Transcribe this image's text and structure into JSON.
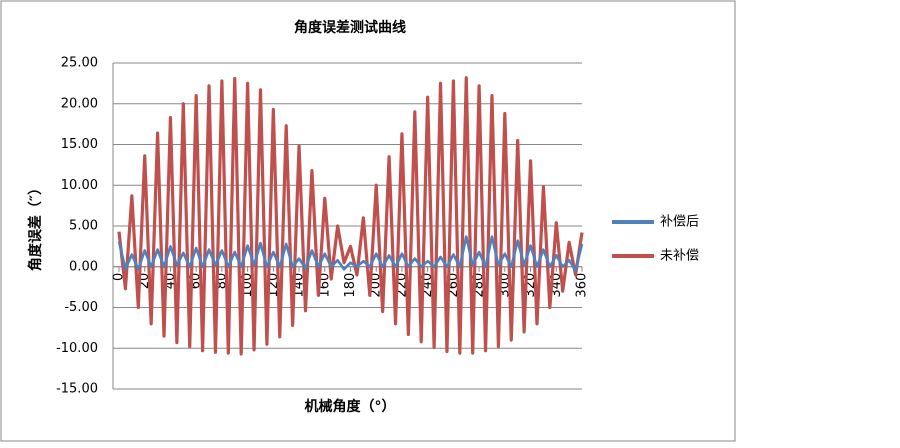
{
  "chart_data": {
    "type": "line",
    "title": "角度误差测试曲线",
    "x_label": "机械角度（°）",
    "y_label": "角度误差（″）",
    "x": [
      0,
      5,
      10,
      15,
      20,
      25,
      30,
      35,
      40,
      45,
      50,
      55,
      60,
      65,
      70,
      75,
      80,
      85,
      90,
      95,
      100,
      105,
      110,
      115,
      120,
      125,
      130,
      135,
      140,
      145,
      150,
      155,
      160,
      165,
      170,
      175,
      180,
      185,
      190,
      195,
      200,
      205,
      210,
      215,
      220,
      225,
      230,
      235,
      240,
      245,
      250,
      255,
      260,
      265,
      270,
      275,
      280,
      285,
      290,
      295,
      300,
      305,
      310,
      315,
      320,
      325,
      330,
      335,
      340,
      345,
      350,
      355,
      360
    ],
    "series": [
      {
        "name": "补偿后",
        "color": "#4f81bd",
        "values": [
          3.1,
          -0.3,
          1.5,
          -0.3,
          2,
          0,
          2.1,
          0,
          2.5,
          0.2,
          1.7,
          0,
          2.3,
          0,
          2.1,
          0.2,
          2,
          0,
          1.8,
          0,
          2.6,
          0.2,
          2.9,
          0,
          1.8,
          0,
          2.8,
          0,
          1,
          -0.2,
          2,
          0,
          1.6,
          0,
          0.8,
          -0.3,
          0.5,
          0,
          0.7,
          0,
          1.6,
          0,
          1.4,
          0,
          1.6,
          0,
          1,
          0,
          0.7,
          0,
          1.2,
          0,
          1.5,
          0,
          3.7,
          0.2,
          1.8,
          0,
          3.7,
          0.2,
          1.6,
          0,
          3.2,
          0.2,
          2.6,
          0,
          2.1,
          0,
          1.4,
          0,
          0.8,
          -0.5,
          2.8
        ]
      },
      {
        "name": "未补偿",
        "color": "#c0504d",
        "values": [
          4.3,
          -2.7,
          8.7,
          -5,
          13.6,
          -7,
          16.4,
          -8.5,
          18.3,
          -9.3,
          20,
          -9.8,
          21,
          -10.3,
          22.2,
          -10.5,
          22.8,
          -10.6,
          23.1,
          -10.7,
          22.5,
          -10.2,
          21.7,
          -9.5,
          19.3,
          -8.6,
          17.3,
          -7.2,
          14.8,
          -5.4,
          11.8,
          -3.5,
          8.4,
          -1.5,
          5,
          0.5,
          2.5,
          -1,
          6,
          -3.5,
          10,
          -5.5,
          13.5,
          -7,
          16.3,
          -8.3,
          19,
          -9.2,
          20.8,
          -9.9,
          22.5,
          -10.4,
          22.8,
          -10.6,
          23.2,
          -10.6,
          22.2,
          -10.3,
          21,
          -9.8,
          18.8,
          -9,
          15.5,
          -8,
          13,
          -7,
          9.8,
          -5,
          5.4,
          -3,
          3,
          -1,
          4.2
        ]
      }
    ],
    "xlim": [
      0,
      360
    ],
    "xticks": [
      0,
      20,
      40,
      60,
      80,
      100,
      120,
      140,
      160,
      180,
      200,
      220,
      240,
      260,
      280,
      300,
      320,
      340,
      360
    ],
    "ylim": [
      -15,
      25
    ],
    "yticks": [
      {
        "value": -15,
        "label": "-15.00"
      },
      {
        "value": -10,
        "label": "-10.00"
      },
      {
        "value": -5,
        "label": "-5.00"
      },
      {
        "value": 0,
        "label": "0.00"
      },
      {
        "value": 5,
        "label": "5.00"
      },
      {
        "value": 10,
        "label": "10.00"
      },
      {
        "value": 15,
        "label": "15.00"
      },
      {
        "value": 20,
        "label": "20.00"
      },
      {
        "value": 25,
        "label": "25.00"
      }
    ],
    "grid": true,
    "legend": "right"
  }
}
